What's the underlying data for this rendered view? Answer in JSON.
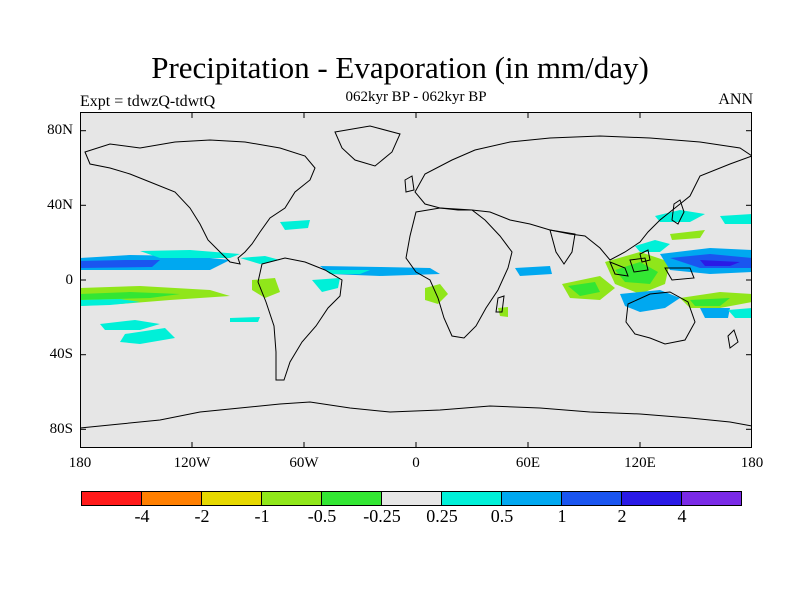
{
  "title": "Precipitation - Evaporation (in mm/day)",
  "subtitle": "062kyr BP - 062kyr BP",
  "left_label": "Expt = tdwzQ-tdwtQ",
  "right_label": "ANN",
  "y_ticks": [
    "80N",
    "40N",
    "0",
    "40S",
    "80S"
  ],
  "x_ticks": [
    "180",
    "120W",
    "60W",
    "0",
    "60E",
    "120E",
    "180"
  ],
  "colorbar": {
    "colors": [
      "#ff1a1a",
      "#ff7f00",
      "#e6d800",
      "#90e61a",
      "#33e633",
      "#e6e6e6",
      "#00f0d8",
      "#00a8f0",
      "#1a55f0",
      "#2a1ae6",
      "#7a2ae6"
    ],
    "labels": [
      "-4",
      "-2",
      "-1",
      "-0.5",
      "-0.25",
      "0.25",
      "0.5",
      "1",
      "2",
      "4"
    ]
  },
  "colors": {
    "land_ocean_background": "#e6e6e6",
    "coastline": "#000000"
  }
}
